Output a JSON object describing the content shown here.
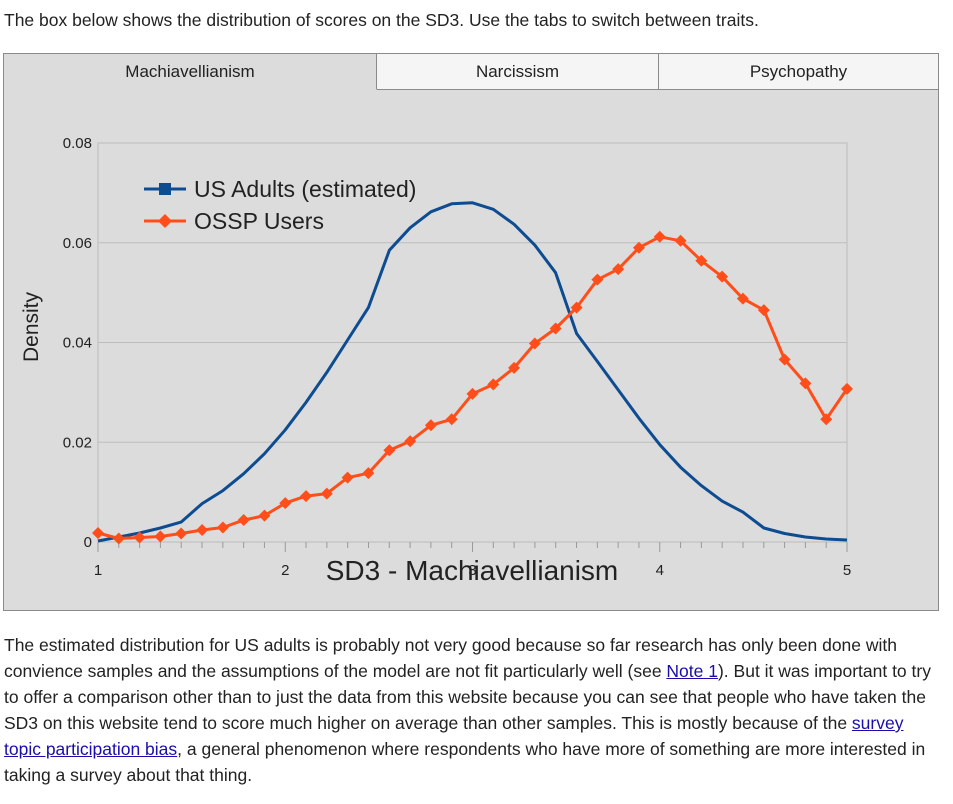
{
  "intro_text": "The box below shows the distribution of scores on the SD3. Use the tabs to switch between traits.",
  "tabs": [
    {
      "label": "Machiavellianism",
      "active": true
    },
    {
      "label": "Narcissism",
      "active": false
    },
    {
      "label": "Psychopathy",
      "active": false
    }
  ],
  "colors": {
    "us": "#0e4c92",
    "ossp": "#ff4e1a",
    "grid": "#bdbdbd",
    "plot_bg": "#dcdcdc"
  },
  "chart_data": {
    "type": "line",
    "title": "",
    "xlabel": "SD3 - Machiavellianism",
    "ylabel": "Density",
    "xlim": [
      1,
      5
    ],
    "ylim": [
      0,
      0.08
    ],
    "xticks": [
      1,
      2,
      3,
      4,
      5
    ],
    "yticks": [
      0,
      0.02,
      0.04,
      0.06,
      0.08
    ],
    "ytick_labels": [
      "0",
      "0.02",
      "0.04",
      "0.06",
      "0.08"
    ],
    "legend_position": "top-left",
    "series": [
      {
        "name": "US Adults (estimated)",
        "marker": "square",
        "color_key": "us",
        "x": [
          1.0,
          1.111,
          1.222,
          1.333,
          1.444,
          1.556,
          1.667,
          1.778,
          1.889,
          2.0,
          2.111,
          2.222,
          2.333,
          2.444,
          2.556,
          2.667,
          2.778,
          2.889,
          3.0,
          3.111,
          3.222,
          3.333,
          3.444,
          3.556,
          3.667,
          3.778,
          3.889,
          4.0,
          4.111,
          4.222,
          4.333,
          4.444,
          4.556,
          4.667,
          4.778,
          4.889,
          5.0
        ],
        "y": [
          0.0002,
          0.001,
          0.0018,
          0.0028,
          0.004,
          0.0077,
          0.0103,
          0.0137,
          0.0177,
          0.0225,
          0.028,
          0.034,
          0.0405,
          0.047,
          0.0585,
          0.063,
          0.0662,
          0.0678,
          0.068,
          0.0667,
          0.0637,
          0.0595,
          0.054,
          0.0418,
          0.0362,
          0.0305,
          0.0248,
          0.0195,
          0.015,
          0.0113,
          0.0082,
          0.006,
          0.0028,
          0.0017,
          0.001,
          0.0006,
          0.0004
        ]
      },
      {
        "name": "OSSP Users",
        "marker": "diamond",
        "color_key": "ossp",
        "x": [
          1.0,
          1.111,
          1.222,
          1.333,
          1.444,
          1.556,
          1.667,
          1.778,
          1.889,
          2.0,
          2.111,
          2.222,
          2.333,
          2.444,
          2.556,
          2.667,
          2.778,
          2.889,
          3.0,
          3.111,
          3.222,
          3.333,
          3.444,
          3.556,
          3.667,
          3.778,
          3.889,
          4.0,
          4.111,
          4.222,
          4.333,
          4.444,
          4.556,
          4.667,
          4.778,
          4.889,
          5.0
        ],
        "y": [
          0.0018,
          0.0007,
          0.0009,
          0.0011,
          0.0017,
          0.0024,
          0.0029,
          0.0044,
          0.0053,
          0.0078,
          0.0092,
          0.0097,
          0.0129,
          0.0138,
          0.0184,
          0.0202,
          0.0234,
          0.0246,
          0.0297,
          0.0316,
          0.0349,
          0.0398,
          0.0428,
          0.047,
          0.0526,
          0.0547,
          0.059,
          0.0612,
          0.0604,
          0.0564,
          0.0532,
          0.0488,
          0.0465,
          0.0366,
          0.0318,
          0.0246,
          0.0307
        ]
      }
    ]
  },
  "outro": {
    "p1": "The estimated distribution for US adults is probably not very good because so far research has only been done with convience samples and the assumptions of the model are not fit particularly well (see ",
    "link1": "Note 1",
    "p2": "). But it was important to try to offer a comparison other than to just the data from this website because you can see that people who have taken the SD3 on this website tend to score much higher on average than other samples. This is mostly because of the ",
    "link2": "survey topic participation bias",
    "p3": ", a general phenomenon where respondents who have more of something are more interested in taking a survey about that thing."
  }
}
